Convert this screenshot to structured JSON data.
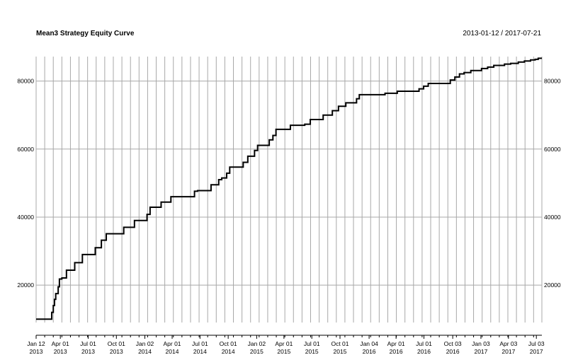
{
  "chart_data": {
    "type": "line",
    "title": "Mean3 Strategy Equity Curve",
    "date_range": "2013-01-12 / 2017-07-21",
    "grid": true,
    "y_ticks": [
      20000,
      40000,
      60000,
      80000
    ],
    "ylim": [
      9000,
      87200
    ],
    "xlim": [
      "2013-01-12",
      "2017-07-21"
    ],
    "x_ticks": [
      {
        "date": "2013-01-12",
        "label": [
          "Jan 12",
          "2013"
        ]
      },
      {
        "date": "2013-04-01",
        "label": [
          "Apr 01",
          "2013"
        ]
      },
      {
        "date": "2013-07-01",
        "label": [
          "Jul 01",
          "2013"
        ]
      },
      {
        "date": "2013-10-01",
        "label": [
          "Oct 01",
          "2013"
        ]
      },
      {
        "date": "2014-01-02",
        "label": [
          "Jan 02",
          "2014"
        ]
      },
      {
        "date": "2014-04-01",
        "label": [
          "Apr 01",
          "2014"
        ]
      },
      {
        "date": "2014-07-01",
        "label": [
          "Jul 01",
          "2014"
        ]
      },
      {
        "date": "2014-10-01",
        "label": [
          "Oct 01",
          "2014"
        ]
      },
      {
        "date": "2015-01-02",
        "label": [
          "Jan 02",
          "2015"
        ]
      },
      {
        "date": "2015-04-01",
        "label": [
          "Apr 01",
          "2015"
        ]
      },
      {
        "date": "2015-07-01",
        "label": [
          "Jul 01",
          "2015"
        ]
      },
      {
        "date": "2015-10-01",
        "label": [
          "Oct 01",
          "2015"
        ]
      },
      {
        "date": "2016-01-04",
        "label": [
          "Jan 04",
          "2016"
        ]
      },
      {
        "date": "2016-04-01",
        "label": [
          "Apr 01",
          "2016"
        ]
      },
      {
        "date": "2016-07-01",
        "label": [
          "Jul 01",
          "2016"
        ]
      },
      {
        "date": "2016-10-03",
        "label": [
          "Oct 03",
          "2016"
        ]
      },
      {
        "date": "2017-01-03",
        "label": [
          "Jan 03",
          "2017"
        ]
      },
      {
        "date": "2017-04-03",
        "label": [
          "Apr 03",
          "2017"
        ]
      },
      {
        "date": "2017-07-03",
        "label": [
          "Jul 03",
          "2017"
        ]
      }
    ],
    "series": [
      {
        "color": "#000000",
        "points": [
          [
            "2013-01-12",
            10000
          ],
          [
            "2013-03-04",
            10000
          ],
          [
            "2013-03-04",
            12000
          ],
          [
            "2013-03-09",
            12000
          ],
          [
            "2013-03-09",
            14000
          ],
          [
            "2013-03-13",
            14000
          ],
          [
            "2013-03-13",
            15800
          ],
          [
            "2013-03-17",
            15800
          ],
          [
            "2013-03-17",
            17500
          ],
          [
            "2013-03-25",
            17500
          ],
          [
            "2013-03-25",
            19500
          ],
          [
            "2013-03-29",
            19500
          ],
          [
            "2013-03-29",
            21800
          ],
          [
            "2013-04-06",
            21800
          ],
          [
            "2013-04-06",
            22100
          ],
          [
            "2013-04-21",
            22100
          ],
          [
            "2013-04-21",
            24400
          ],
          [
            "2013-05-18",
            24400
          ],
          [
            "2013-05-18",
            26600
          ],
          [
            "2013-06-12",
            26600
          ],
          [
            "2013-06-12",
            29000
          ],
          [
            "2013-07-24",
            29000
          ],
          [
            "2013-07-24",
            31000
          ],
          [
            "2013-08-13",
            31000
          ],
          [
            "2013-08-13",
            33200
          ],
          [
            "2013-08-29",
            33200
          ],
          [
            "2013-08-29",
            35100
          ],
          [
            "2013-10-25",
            35100
          ],
          [
            "2013-10-25",
            37000
          ],
          [
            "2013-11-29",
            37000
          ],
          [
            "2013-11-29",
            39000
          ],
          [
            "2014-01-09",
            39000
          ],
          [
            "2014-01-09",
            40800
          ],
          [
            "2014-01-19",
            40800
          ],
          [
            "2014-01-19",
            42900
          ],
          [
            "2014-02-24",
            42900
          ],
          [
            "2014-02-24",
            44400
          ],
          [
            "2014-03-28",
            44400
          ],
          [
            "2014-03-28",
            46000
          ],
          [
            "2014-06-13",
            46000
          ],
          [
            "2014-06-13",
            47600
          ],
          [
            "2014-06-23",
            47600
          ],
          [
            "2014-06-23",
            47800
          ],
          [
            "2014-08-06",
            47800
          ],
          [
            "2014-08-06",
            49500
          ],
          [
            "2014-08-31",
            49500
          ],
          [
            "2014-08-31",
            51000
          ],
          [
            "2014-09-10",
            51000
          ],
          [
            "2014-09-10",
            51500
          ],
          [
            "2014-09-26",
            51500
          ],
          [
            "2014-09-26",
            52900
          ],
          [
            "2014-10-06",
            52900
          ],
          [
            "2014-10-06",
            54700
          ],
          [
            "2014-11-19",
            54700
          ],
          [
            "2014-11-19",
            56100
          ],
          [
            "2014-12-04",
            56100
          ],
          [
            "2014-12-04",
            57900
          ],
          [
            "2014-12-26",
            57900
          ],
          [
            "2014-12-26",
            59600
          ],
          [
            "2015-01-05",
            59600
          ],
          [
            "2015-01-05",
            61100
          ],
          [
            "2015-02-12",
            61100
          ],
          [
            "2015-02-12",
            62700
          ],
          [
            "2015-02-24",
            62700
          ],
          [
            "2015-02-24",
            64000
          ],
          [
            "2015-03-06",
            64000
          ],
          [
            "2015-03-06",
            65800
          ],
          [
            "2015-04-22",
            65800
          ],
          [
            "2015-04-22",
            67000
          ],
          [
            "2015-06-08",
            67000
          ],
          [
            "2015-06-08",
            67300
          ],
          [
            "2015-06-26",
            67300
          ],
          [
            "2015-06-26",
            68700
          ],
          [
            "2015-08-07",
            68700
          ],
          [
            "2015-08-07",
            70000
          ],
          [
            "2015-09-06",
            70000
          ],
          [
            "2015-09-06",
            71300
          ],
          [
            "2015-09-26",
            71300
          ],
          [
            "2015-09-26",
            72600
          ],
          [
            "2015-10-20",
            72600
          ],
          [
            "2015-10-20",
            73600
          ],
          [
            "2015-11-24",
            73600
          ],
          [
            "2015-11-24",
            74800
          ],
          [
            "2015-12-03",
            74800
          ],
          [
            "2015-12-03",
            76000
          ],
          [
            "2016-02-25",
            76000
          ],
          [
            "2016-02-25",
            76400
          ],
          [
            "2016-04-05",
            76400
          ],
          [
            "2016-04-05",
            77000
          ],
          [
            "2016-06-15",
            77000
          ],
          [
            "2016-06-15",
            77700
          ],
          [
            "2016-06-30",
            77700
          ],
          [
            "2016-06-30",
            78500
          ],
          [
            "2016-07-15",
            78500
          ],
          [
            "2016-07-15",
            79300
          ],
          [
            "2016-09-25",
            79300
          ],
          [
            "2016-09-25",
            80300
          ],
          [
            "2016-10-10",
            80300
          ],
          [
            "2016-10-10",
            81200
          ],
          [
            "2016-10-25",
            81200
          ],
          [
            "2016-10-25",
            82100
          ],
          [
            "2016-11-09",
            82100
          ],
          [
            "2016-11-09",
            82500
          ],
          [
            "2016-12-01",
            82500
          ],
          [
            "2016-12-01",
            83100
          ],
          [
            "2017-01-05",
            83100
          ],
          [
            "2017-01-05",
            83700
          ],
          [
            "2017-01-25",
            83700
          ],
          [
            "2017-01-25",
            84100
          ],
          [
            "2017-02-14",
            84100
          ],
          [
            "2017-02-14",
            84600
          ],
          [
            "2017-03-21",
            84600
          ],
          [
            "2017-03-21",
            85000
          ],
          [
            "2017-04-10",
            85000
          ],
          [
            "2017-04-10",
            85200
          ],
          [
            "2017-05-05",
            85200
          ],
          [
            "2017-05-05",
            85600
          ],
          [
            "2017-05-25",
            85600
          ],
          [
            "2017-05-25",
            85900
          ],
          [
            "2017-06-14",
            85900
          ],
          [
            "2017-06-14",
            86200
          ],
          [
            "2017-06-29",
            86200
          ],
          [
            "2017-06-29",
            86400
          ],
          [
            "2017-07-09",
            86400
          ],
          [
            "2017-07-09",
            86700
          ],
          [
            "2017-07-21",
            86700
          ]
        ]
      }
    ]
  }
}
